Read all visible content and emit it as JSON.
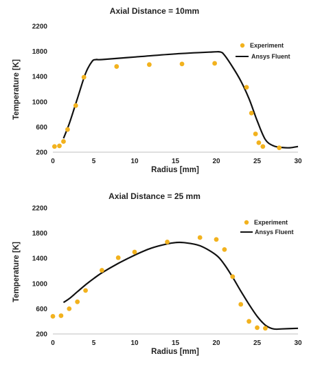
{
  "chart_data": [
    {
      "type": "scatter",
      "title": "Axial Distance = 10mm",
      "xlabel": "Radius [mm]",
      "ylabel": "Temperature [K]",
      "xlim": [
        0,
        30
      ],
      "ylim": [
        200,
        2200
      ],
      "xticks": [
        "0",
        "5",
        "10",
        "15",
        "20",
        "25",
        "30"
      ],
      "yticks": [
        "200",
        "600",
        "1000",
        "1400",
        "1800",
        "2200"
      ],
      "grid": false,
      "legend_position": "top-right",
      "series": [
        {
          "name": "Experiment",
          "kind": "scatter",
          "color": "#f2b21e",
          "x": [
            0.2,
            0.8,
            1.3,
            1.8,
            2.8,
            3.8,
            7.8,
            11.8,
            15.8,
            19.8,
            23.7,
            24.3,
            24.8,
            25.2,
            25.7,
            27.7
          ],
          "y": [
            290,
            300,
            370,
            560,
            940,
            1390,
            1560,
            1590,
            1600,
            1610,
            1230,
            820,
            490,
            350,
            290,
            270
          ]
        },
        {
          "name": "Ansys Fluent",
          "kind": "line",
          "color": "#111111",
          "x": [
            1.3,
            2.0,
            3.0,
            4.0,
            4.8,
            5.3,
            6.0,
            10,
            15,
            19.5,
            20.5,
            21.0,
            22.0,
            23.0,
            24.0,
            25.0,
            26.0,
            27.0,
            28.0,
            29.0,
            30.0
          ],
          "y": [
            420,
            650,
            1050,
            1450,
            1640,
            1670,
            1670,
            1710,
            1760,
            1790,
            1790,
            1740,
            1550,
            1330,
            1050,
            700,
            400,
            300,
            275,
            270,
            290
          ]
        }
      ]
    },
    {
      "type": "scatter",
      "title": "Axial Distance = 25 mm",
      "xlabel": "Radius [mm]",
      "ylabel": "Temperature [K]",
      "xlim": [
        0,
        30
      ],
      "ylim": [
        200,
        2200
      ],
      "xticks": [
        "0",
        "5",
        "10",
        "15",
        "20",
        "25",
        "30"
      ],
      "yticks": [
        "200",
        "600",
        "1000",
        "1400",
        "1800",
        "2200"
      ],
      "grid": false,
      "legend_position": "top-right",
      "series": [
        {
          "name": "Experiment",
          "kind": "scatter",
          "color": "#f2b21e",
          "x": [
            0,
            1,
            2,
            3,
            4,
            6,
            8,
            10,
            14,
            18,
            20,
            21,
            22,
            23,
            24,
            25,
            26
          ],
          "y": [
            480,
            490,
            600,
            710,
            890,
            1210,
            1410,
            1500,
            1660,
            1730,
            1700,
            1540,
            1110,
            670,
            400,
            300,
            290
          ]
        },
        {
          "name": "Ansys Fluent",
          "kind": "line",
          "color": "#111111",
          "x": [
            1.3,
            2,
            3,
            4,
            5,
            6,
            8,
            10,
            12,
            14,
            15,
            16,
            18,
            20,
            21,
            22,
            23,
            24,
            25,
            26,
            27,
            28,
            30
          ],
          "y": [
            700,
            760,
            870,
            980,
            1080,
            1170,
            1320,
            1450,
            1560,
            1630,
            1650,
            1650,
            1600,
            1450,
            1300,
            1100,
            880,
            670,
            480,
            340,
            280,
            280,
            290
          ]
        }
      ]
    }
  ]
}
